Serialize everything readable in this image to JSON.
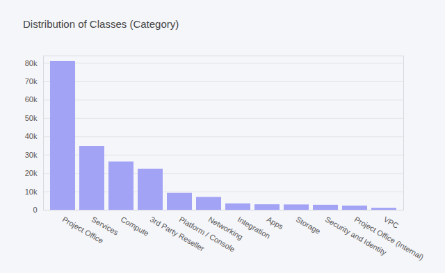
{
  "chart_data": {
    "type": "bar",
    "title": "Distribution of Classes (Category)",
    "categories": [
      "Project Office",
      "Services",
      "Compute",
      "3rd Party Reseller",
      "Platform / Console",
      "Networking",
      "Integration",
      "Apps",
      "Storage",
      "Security and Identity",
      "Project Office (Internal)",
      "VPC"
    ],
    "values": [
      81000,
      34800,
      26300,
      22400,
      9200,
      7000,
      3500,
      3000,
      2900,
      2700,
      2300,
      1100
    ],
    "color": "#a3a3f5",
    "ylim": [
      0,
      84000
    ],
    "yticks": [
      0,
      {
        "value": 10000,
        "label": "10k"
      },
      {
        "value": 20000,
        "label": "20k"
      },
      {
        "value": 30000,
        "label": "30k"
      },
      {
        "value": 40000,
        "label": "40k"
      },
      {
        "value": 50000,
        "label": "50k"
      },
      {
        "value": 60000,
        "label": "60k"
      },
      {
        "value": 70000,
        "label": "70k"
      },
      {
        "value": 80000,
        "label": "80k"
      }
    ],
    "grid": true
  }
}
